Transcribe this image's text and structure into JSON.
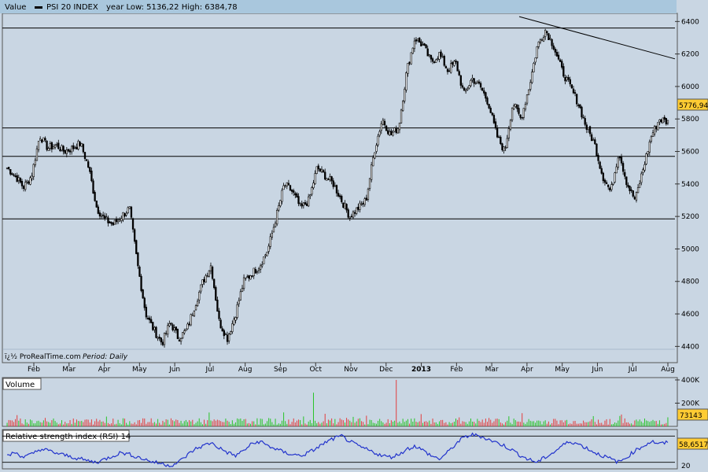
{
  "header": {
    "value_label": "Value",
    "series_label": "PSI 20 INDEX",
    "year_range": "year Low: 5136,22 High: 6384,78"
  },
  "watermark": {
    "brand": "ï¿½ ProRealTime.com",
    "period": "Period: Daily"
  },
  "volume_panel": {
    "title": "Volume",
    "current_label": "73143",
    "ticks": [
      {
        "v": 400000,
        "label": "400K"
      },
      {
        "v": 200000,
        "label": "200K"
      }
    ]
  },
  "rsi_panel": {
    "title": "Relative strength index (RSI) 14",
    "current_label": "58,6517",
    "bottom_tick": "20"
  },
  "colors": {
    "background": "#c9d6e3",
    "header_bar": "#a9c7dd",
    "candle": "#000000",
    "volume_up": "#27c427",
    "volume_down": "#e33d3d",
    "rsi_line": "#2233cc",
    "price_tag": "#ffcc33"
  },
  "chart_data": {
    "type": "candlestick",
    "title": "PSI 20 INDEX",
    "ylim": [
      4300,
      6450
    ],
    "price_ticks": [
      4400,
      4600,
      4800,
      5000,
      5200,
      5400,
      5600,
      5800,
      6000,
      6200,
      6400
    ],
    "x_labels": [
      {
        "label": "Feb",
        "bold": false
      },
      {
        "label": "Mar",
        "bold": false
      },
      {
        "label": "Apr",
        "bold": false
      },
      {
        "label": "May",
        "bold": false
      },
      {
        "label": "Jun",
        "bold": false
      },
      {
        "label": "Jul",
        "bold": false
      },
      {
        "label": "Aug",
        "bold": false
      },
      {
        "label": "Sep",
        "bold": false
      },
      {
        "label": "Oct",
        "bold": false
      },
      {
        "label": "Nov",
        "bold": false
      },
      {
        "label": "Dec",
        "bold": false
      },
      {
        "label": "2013",
        "bold": true
      },
      {
        "label": "Feb",
        "bold": false
      },
      {
        "label": "Mar",
        "bold": false
      },
      {
        "label": "Apr",
        "bold": false
      },
      {
        "label": "May",
        "bold": false
      },
      {
        "label": "Jun",
        "bold": false
      },
      {
        "label": "Jul",
        "bold": false
      },
      {
        "label": "Aug",
        "bold": false
      }
    ],
    "horizontal_levels": [
      6360,
      5745,
      5570,
      5185
    ],
    "trendline": {
      "from": 6430,
      "to": 6170
    },
    "current_price_label": "5776,94",
    "close_path": [
      5500,
      5450,
      5380,
      5450,
      5700,
      5620,
      5640,
      5600,
      5620,
      5650,
      5500,
      5250,
      5180,
      5150,
      5200,
      5250,
      4900,
      4600,
      4500,
      4420,
      4550,
      4450,
      4500,
      4650,
      4800,
      4900,
      4550,
      4450,
      4600,
      4800,
      4850,
      4900,
      5000,
      5200,
      5400,
      5350,
      5250,
      5300,
      5500,
      5450,
      5400,
      5300,
      5200,
      5250,
      5300,
      5600,
      5800,
      5700,
      5750,
      6100,
      6300,
      6250,
      6150,
      6200,
      6100,
      6150,
      5950,
      6050,
      6000,
      5900,
      5700,
      5600,
      5900,
      5800,
      6000,
      6250,
      6350,
      6250,
      6100,
      6000,
      5900,
      5750,
      5650,
      5450,
      5350,
      5600,
      5400,
      5300,
      5500,
      5700,
      5800,
      5780
    ],
    "volume": {
      "ylim": [
        0,
        420000
      ],
      "spike_indexes": [
        37,
        47
      ],
      "spike_values": [
        290000,
        400000
      ]
    },
    "rsi": {
      "ylim": [
        20,
        80
      ],
      "upper_band": 70,
      "lower_band": 30,
      "path": [
        40,
        45,
        38,
        42,
        50,
        48,
        44,
        41,
        38,
        35,
        32,
        30,
        35,
        40,
        45,
        42,
        38,
        34,
        30,
        28,
        25,
        30,
        40,
        50,
        55,
        60,
        52,
        45,
        40,
        48,
        58,
        62,
        55,
        50,
        45,
        42,
        40,
        45,
        52,
        60,
        66,
        70,
        62,
        55,
        50,
        45,
        40,
        38,
        42,
        50,
        55,
        48,
        40,
        35,
        45,
        58,
        68,
        72,
        70,
        65,
        60,
        55,
        48,
        40,
        34,
        30,
        38,
        45,
        55,
        62,
        58,
        52,
        45,
        40,
        35,
        30,
        38,
        48,
        55,
        62,
        58,
        60
      ]
    }
  }
}
